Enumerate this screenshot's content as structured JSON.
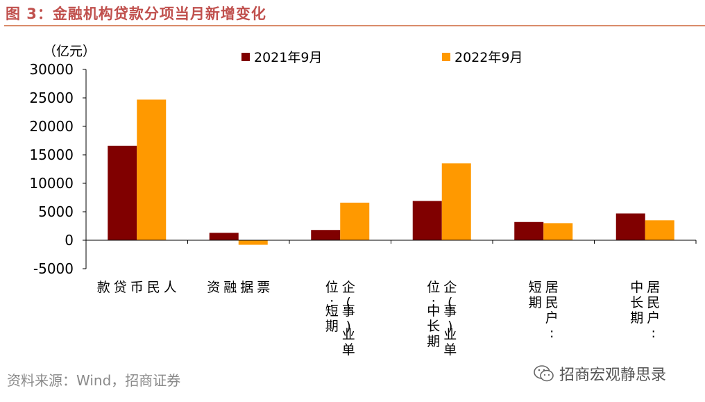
{
  "figure_title": "图 3：金融机构贷款分项当月新增变化",
  "source_note": "资料来源：Wind，招商证券",
  "watermark": "招商宏观静思录",
  "colors": {
    "series_2021": "#800000",
    "series_2022": "#ff9900",
    "title": "#c0504d"
  },
  "chart_data": {
    "type": "bar",
    "title": "",
    "ylabel": "（亿元）",
    "xlabel": "",
    "ylim": [
      -5000,
      30000
    ],
    "yticks": [
      -5000,
      0,
      5000,
      10000,
      15000,
      20000,
      25000,
      30000
    ],
    "grid": false,
    "legend_position": "top",
    "categories": [
      [
        "人",
        "民",
        "币",
        "贷",
        "款"
      ],
      [
        "票",
        "据",
        "融",
        "资"
      ],
      [
        "企(事)业单",
        "位:短期"
      ],
      [
        "企(事)业单",
        "位:中长期"
      ],
      [
        "居民户:",
        "短期"
      ],
      [
        "居民户:",
        "中长期"
      ]
    ],
    "series": [
      {
        "name": "2021年9月",
        "values": [
          16600,
          1300,
          1800,
          6900,
          3200,
          4700
        ]
      },
      {
        "name": "2022年9月",
        "values": [
          24700,
          -800,
          6600,
          13500,
          3000,
          3500
        ]
      }
    ]
  }
}
